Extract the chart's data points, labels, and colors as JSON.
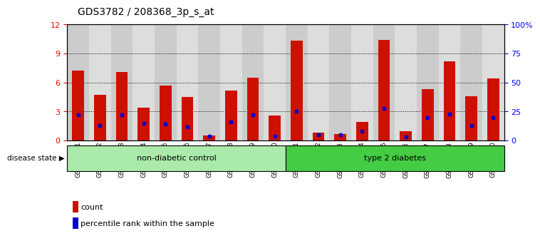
{
  "title": "GDS3782 / 208368_3p_s_at",
  "samples": [
    "GSM524151",
    "GSM524152",
    "GSM524153",
    "GSM524154",
    "GSM524155",
    "GSM524156",
    "GSM524157",
    "GSM524158",
    "GSM524159",
    "GSM524160",
    "GSM524161",
    "GSM524162",
    "GSM524163",
    "GSM524164",
    "GSM524165",
    "GSM524166",
    "GSM524167",
    "GSM524168",
    "GSM524169",
    "GSM524170"
  ],
  "counts": [
    7.2,
    4.7,
    7.1,
    3.4,
    5.7,
    4.5,
    0.5,
    5.2,
    6.5,
    2.6,
    10.3,
    0.8,
    0.7,
    1.9,
    10.4,
    1.0,
    5.3,
    8.2,
    4.6,
    6.4
  ],
  "percentile_ranks": [
    22,
    13,
    22,
    15,
    14,
    12,
    4,
    16,
    22,
    4,
    25,
    5,
    5,
    8,
    28,
    3,
    20,
    23,
    13,
    20
  ],
  "groups": [
    "non-diabetic control",
    "non-diabetic control",
    "non-diabetic control",
    "non-diabetic control",
    "non-diabetic control",
    "non-diabetic control",
    "non-diabetic control",
    "non-diabetic control",
    "non-diabetic control",
    "non-diabetic control",
    "type 2 diabetes",
    "type 2 diabetes",
    "type 2 diabetes",
    "type 2 diabetes",
    "type 2 diabetes",
    "type 2 diabetes",
    "type 2 diabetes",
    "type 2 diabetes",
    "type 2 diabetes",
    "type 2 diabetes"
  ],
  "group_colors": {
    "non-diabetic control": "#AAEAAA",
    "type 2 diabetes": "#44CC44"
  },
  "bar_color": "#CC1100",
  "dot_color": "#0000CC",
  "ylim_left": [
    0,
    12
  ],
  "ylim_right": [
    0,
    100
  ],
  "yticks_left": [
    0,
    3,
    6,
    9,
    12
  ],
  "yticks_right": [
    0,
    25,
    50,
    75,
    100
  ],
  "ytick_labels_right": [
    "0",
    "25",
    "50",
    "75",
    "100%"
  ],
  "col_bg_even": "#CCCCCC",
  "col_bg_odd": "#DDDDDD",
  "title_fontsize": 10,
  "legend_count_label": "count",
  "legend_percentile_label": "percentile rank within the sample",
  "disease_state_label": "disease state"
}
